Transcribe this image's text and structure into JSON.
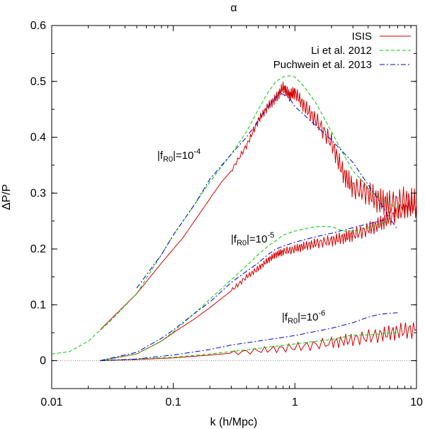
{
  "chart_data": {
    "type": "line",
    "title": "α",
    "xlabel": "k  (h/Mpc)",
    "ylabel": "ΔP/P",
    "xscale": "log",
    "xlim": [
      0.01,
      10
    ],
    "ylim": [
      -0.05,
      0.6
    ],
    "x_ticks": [
      "0.01",
      "0.1",
      "1",
      "10"
    ],
    "y_ticks": [
      "0",
      "0.1",
      "0.2",
      "0.3",
      "0.4",
      "0.5",
      "0.6"
    ],
    "legend_position": "top-right",
    "legend": [
      {
        "name": "ISIS",
        "color": "#d40000",
        "style": "solid"
      },
      {
        "name": "Li et al. 2012",
        "color": "#00cc00",
        "style": "dashed"
      },
      {
        "name": "Puchwein et al. 2013",
        "color": "#0000cc",
        "style": "dashdot"
      }
    ],
    "annotations": [
      {
        "text": "|f",
        "sub": "R0",
        "mid": "|=10",
        "sup": "-4"
      },
      {
        "text": "|f",
        "sub": "R0",
        "mid": "|=10",
        "sup": "-5"
      },
      {
        "text": "|f",
        "sub": "R0",
        "mid": "|=10",
        "sup": "-6"
      }
    ],
    "series": [
      {
        "name": "ISIS",
        "model": "|fR0|=10^-4",
        "color": "#d40000",
        "style": "solid",
        "x": [
          0.025,
          0.05,
          0.08,
          0.12,
          0.2,
          0.25,
          0.3,
          0.4,
          0.5,
          0.6,
          0.7,
          0.8,
          0.9,
          1.0,
          1.2,
          1.5,
          2.0,
          2.5,
          3.0,
          4.0,
          5.0,
          6.0,
          8.0,
          10.0
        ],
        "y": [
          0.055,
          0.12,
          0.175,
          0.22,
          0.29,
          0.32,
          0.34,
          0.385,
          0.43,
          0.455,
          0.47,
          0.49,
          0.475,
          0.48,
          0.455,
          0.43,
          0.39,
          0.335,
          0.31,
          0.3,
          0.285,
          0.28,
          0.285,
          0.28
        ]
      },
      {
        "name": "Li et al. 2012",
        "model": "|fR0|=10^-4",
        "color": "#00cc00",
        "style": "dashed",
        "x": [
          0.01,
          0.014,
          0.02,
          0.03,
          0.05,
          0.08,
          0.1,
          0.15,
          0.2,
          0.3,
          0.4,
          0.5,
          0.6,
          0.7,
          0.8,
          0.9,
          1.0,
          1.2,
          1.5,
          2.0,
          2.5,
          3.0,
          4.0,
          5.0,
          6.0,
          7.0,
          8.0
        ],
        "y": [
          0.012,
          0.016,
          0.035,
          0.07,
          0.12,
          0.19,
          0.225,
          0.28,
          0.32,
          0.37,
          0.41,
          0.45,
          0.48,
          0.5,
          0.508,
          0.51,
          0.508,
          0.49,
          0.46,
          0.41,
          0.37,
          0.34,
          0.31,
          0.29,
          0.28,
          0.275,
          0.27
        ]
      },
      {
        "name": "Puchwein et al. 2013",
        "model": "|fR0|=10^-4",
        "color": "#0000cc",
        "style": "dashdot",
        "x": [
          0.05,
          0.08,
          0.1,
          0.15,
          0.2,
          0.3,
          0.4,
          0.5,
          0.6,
          0.75,
          0.9,
          1.0,
          1.5,
          2.0,
          3.0,
          4.0,
          5.0,
          6.0,
          7.0
        ],
        "y": [
          0.13,
          0.19,
          0.225,
          0.28,
          0.325,
          0.37,
          0.4,
          0.43,
          0.455,
          0.48,
          0.47,
          0.455,
          0.42,
          0.395,
          0.355,
          0.315,
          0.285,
          0.255,
          0.235
        ]
      },
      {
        "name": "ISIS",
        "model": "|fR0|=10^-5",
        "color": "#d40000",
        "style": "solid",
        "x": [
          0.025,
          0.05,
          0.08,
          0.1,
          0.15,
          0.2,
          0.3,
          0.4,
          0.5,
          0.6,
          0.7,
          0.8,
          1.0,
          1.2,
          1.5,
          2.0,
          2.5,
          3.0,
          4.0,
          5.0,
          6.0,
          8.0,
          10.0
        ],
        "y": [
          0.0,
          0.012,
          0.035,
          0.05,
          0.075,
          0.095,
          0.125,
          0.15,
          0.165,
          0.18,
          0.19,
          0.195,
          0.2,
          0.205,
          0.21,
          0.215,
          0.22,
          0.225,
          0.235,
          0.245,
          0.255,
          0.27,
          0.28
        ]
      },
      {
        "name": "Li et al. 2012",
        "model": "|fR0|=10^-5",
        "color": "#00cc00",
        "style": "dashed",
        "x": [
          0.025,
          0.05,
          0.08,
          0.1,
          0.15,
          0.2,
          0.3,
          0.4,
          0.5,
          0.6,
          0.7,
          0.8,
          1.0,
          1.2,
          1.5,
          2.0,
          2.5,
          3.0,
          4.0,
          5.0,
          6.0
        ],
        "y": [
          0.0,
          0.012,
          0.035,
          0.052,
          0.085,
          0.11,
          0.145,
          0.17,
          0.19,
          0.205,
          0.215,
          0.225,
          0.232,
          0.236,
          0.24,
          0.24,
          0.232,
          0.232,
          0.238,
          0.245,
          0.25
        ]
      },
      {
        "name": "Puchwein et al. 2013",
        "model": "|fR0|=10^-5",
        "color": "#0000cc",
        "style": "dashdot",
        "x": [
          0.025,
          0.05,
          0.08,
          0.1,
          0.15,
          0.2,
          0.3,
          0.4,
          0.5,
          0.6,
          0.7,
          0.8,
          1.0,
          1.5,
          2.0,
          3.0,
          4.0,
          5.0,
          6.0
        ],
        "y": [
          0.0,
          0.015,
          0.04,
          0.055,
          0.085,
          0.105,
          0.14,
          0.16,
          0.175,
          0.19,
          0.2,
          0.205,
          0.212,
          0.222,
          0.228,
          0.238,
          0.245,
          0.25,
          0.255
        ]
      },
      {
        "name": "ISIS",
        "model": "|fR0|=10^-6",
        "color": "#d40000",
        "style": "solid",
        "x": [
          0.025,
          0.05,
          0.1,
          0.2,
          0.5,
          1.0,
          2.0,
          3.0,
          5.0,
          7.0,
          10.0
        ],
        "y": [
          0.0,
          0.002,
          0.005,
          0.01,
          0.018,
          0.024,
          0.032,
          0.038,
          0.046,
          0.052,
          0.056
        ]
      },
      {
        "name": "Li et al. 2012",
        "model": "|fR0|=10^-6",
        "color": "#00cc00",
        "style": "dashed",
        "x": [
          0.025,
          0.05,
          0.1,
          0.2,
          0.5,
          1.0,
          2.0,
          3.0,
          4.0,
          5.0,
          7.0
        ],
        "y": [
          0.0,
          0.003,
          0.006,
          0.012,
          0.022,
          0.03,
          0.038,
          0.046,
          0.046,
          0.048,
          0.05
        ]
      },
      {
        "name": "Puchwein et al. 2013",
        "model": "|fR0|=10^-6",
        "color": "#0000cc",
        "style": "dashdot",
        "x": [
          0.025,
          0.05,
          0.1,
          0.2,
          0.3,
          0.5,
          1.0,
          2.0,
          3.0,
          4.0,
          5.0,
          7.0
        ],
        "y": [
          0.0,
          0.003,
          0.01,
          0.02,
          0.028,
          0.035,
          0.045,
          0.058,
          0.068,
          0.078,
          0.083,
          0.086
        ]
      }
    ]
  }
}
